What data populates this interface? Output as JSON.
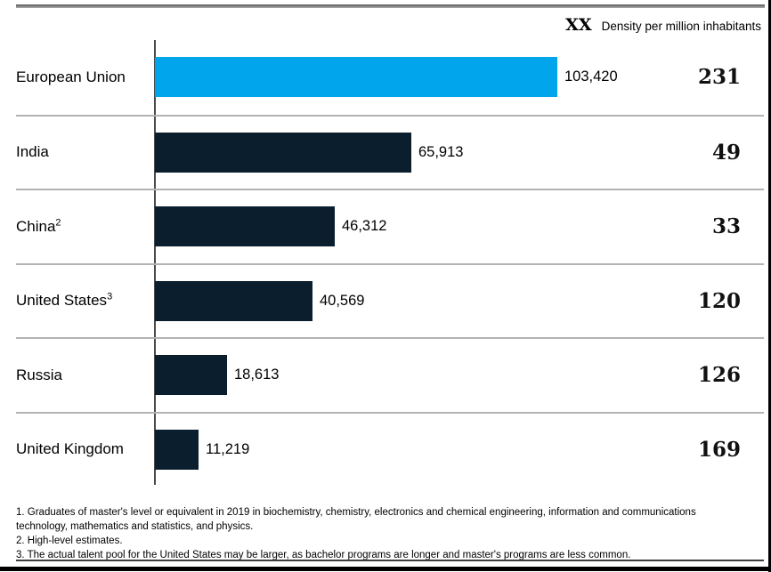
{
  "header": {
    "marker": "XX",
    "legend": "Density per million inhabitants"
  },
  "chart_data": {
    "type": "bar",
    "orientation": "horizontal",
    "max_value": 103420,
    "value_axis_shown": false,
    "legend_position": "top-right",
    "colors": {
      "highlight_bar": "#00A5EC",
      "default_bar": "#0A1E2E"
    },
    "categories": [
      "European Union",
      "India",
      "China",
      "United States",
      "Russia",
      "United Kingdom"
    ],
    "rows": [
      {
        "label": "European Union",
        "sup": "",
        "value": 103420,
        "value_display": "103,420",
        "density": "231",
        "color": "#00A5EC"
      },
      {
        "label": "India",
        "sup": "",
        "value": 65913,
        "value_display": "65,913",
        "density": "49",
        "color": "#0A1E2E"
      },
      {
        "label": "China",
        "sup": "2",
        "value": 46312,
        "value_display": "46,312",
        "density": "33",
        "color": "#0A1E2E"
      },
      {
        "label": "United States",
        "sup": "3",
        "value": 40569,
        "value_display": "40,569",
        "density": "120",
        "color": "#0A1E2E"
      },
      {
        "label": "Russia",
        "sup": "",
        "value": 18613,
        "value_display": "18,613",
        "density": "126",
        "color": "#0A1E2E"
      },
      {
        "label": "United Kingdom",
        "sup": "",
        "value": 11219,
        "value_display": "11,219",
        "density": "169",
        "color": "#0A1E2E"
      }
    ]
  },
  "footnotes": {
    "lines": [
      "1. Graduates of master's level or equivalent in 2019 in biochemistry, chemistry, electronics and chemical engineering, information and communications",
      "technology, mathematics and statistics, and physics.",
      "2. High-level estimates.",
      "3. The actual talent pool for the United States may be larger, as bachelor programs are longer and master's programs are less common."
    ]
  }
}
